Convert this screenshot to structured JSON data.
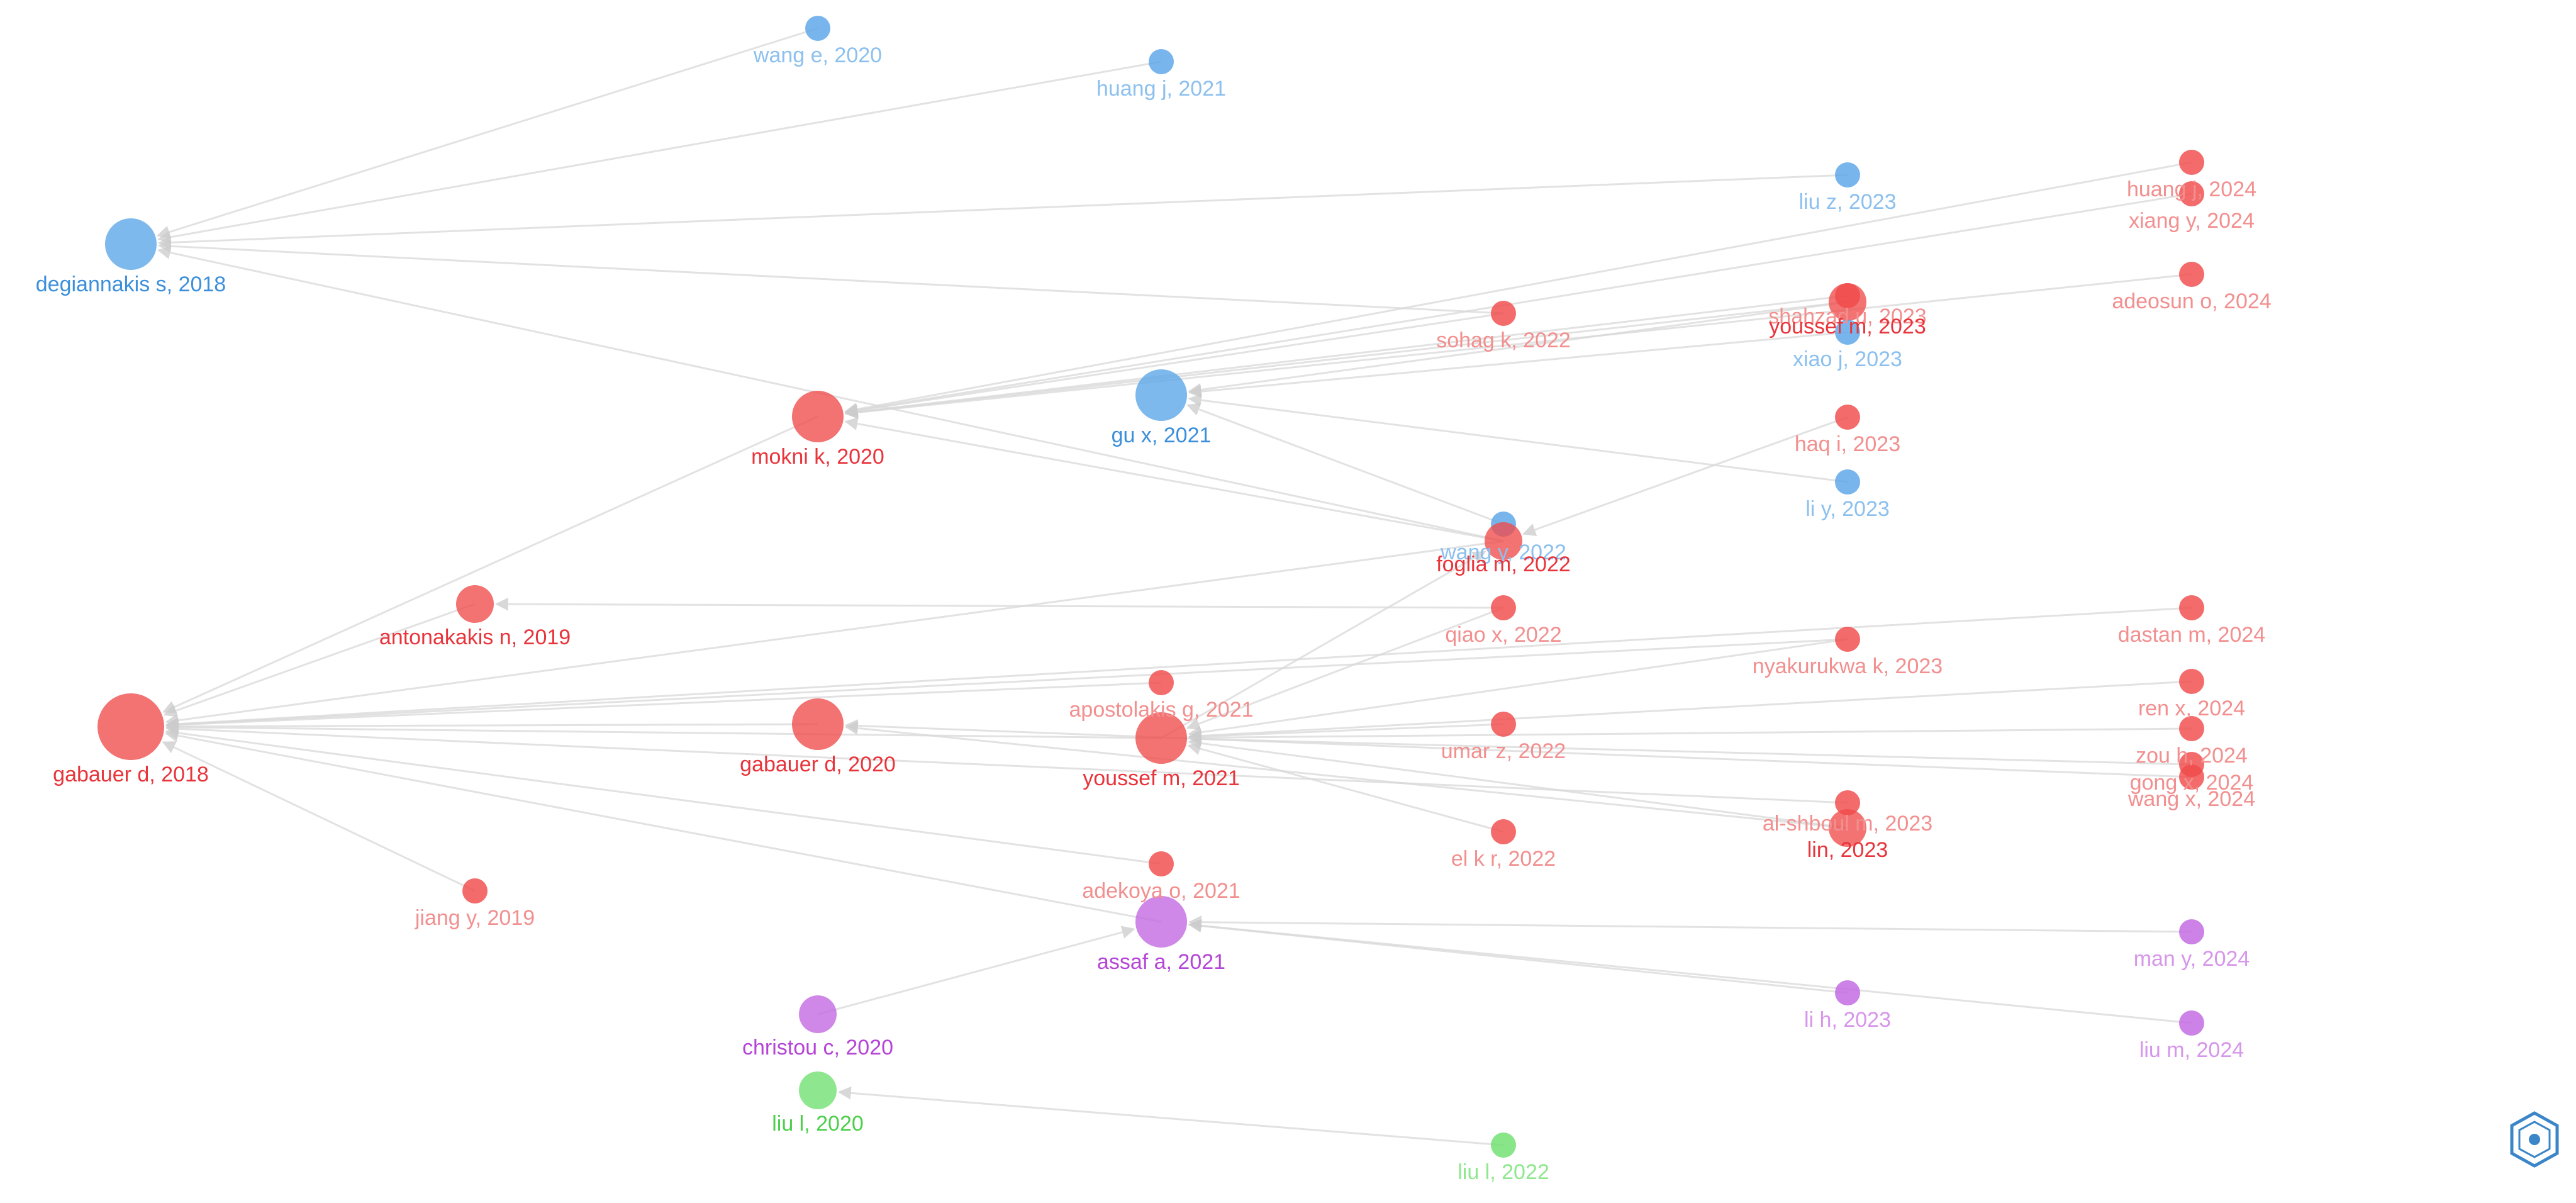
{
  "colors": {
    "red": "#f04a4a",
    "blue": "#5aa5e8",
    "purple": "#c167e0",
    "green": "#6ee06e",
    "edge": "#d9d9d9"
  },
  "nodes": [
    {
      "id": "wange2020",
      "label": "wang e, 2020",
      "cluster": "blue",
      "size": "small"
    },
    {
      "id": "huangj2021",
      "label": "huang j, 2021",
      "cluster": "blue",
      "size": "small"
    },
    {
      "id": "degiannakis2018",
      "label": "degiannakis s, 2018",
      "cluster": "blue",
      "size": "large"
    },
    {
      "id": "liuz2023",
      "label": "liu z, 2023",
      "cluster": "blue",
      "size": "small"
    },
    {
      "id": "huang2024",
      "label": "huang j, 2024",
      "cluster": "red",
      "size": "small"
    },
    {
      "id": "xiangy2024",
      "label": "xiang y, 2024",
      "cluster": "red",
      "size": "small"
    },
    {
      "id": "adeosun2024",
      "label": "adeosun o, 2024",
      "cluster": "red",
      "size": "small"
    },
    {
      "id": "sohagk2022",
      "label": "sohag k, 2022",
      "cluster": "red",
      "size": "small"
    },
    {
      "id": "shahzad2023",
      "label": "shahzad u, 2023",
      "cluster": "red",
      "size": "small"
    },
    {
      "id": "youssef2023",
      "label": "youssef m, 2023",
      "cluster": "red",
      "size": "medium"
    },
    {
      "id": "xiaoj2023",
      "label": "xiao j, 2023",
      "cluster": "blue",
      "size": "small"
    },
    {
      "id": "mokni2020",
      "label": "mokni k, 2020",
      "cluster": "red",
      "size": "large"
    },
    {
      "id": "gux2021",
      "label": "gu x, 2021",
      "cluster": "blue",
      "size": "large"
    },
    {
      "id": "haqi2023",
      "label": "haq i, 2023",
      "cluster": "red",
      "size": "small"
    },
    {
      "id": "liy2023",
      "label": "li y, 2023",
      "cluster": "blue",
      "size": "small"
    },
    {
      "id": "wangy2022",
      "label": "wang y, 2022",
      "cluster": "blue",
      "size": "small"
    },
    {
      "id": "foglia2022",
      "label": "foglia m, 2022",
      "cluster": "red",
      "size": "medium"
    },
    {
      "id": "antonakakis2019",
      "label": "antonakakis n, 2019",
      "cluster": "red",
      "size": "medium"
    },
    {
      "id": "qiaox2022",
      "label": "qiao x, 2022",
      "cluster": "red",
      "size": "small"
    },
    {
      "id": "dastan2024",
      "label": "dastan m, 2024",
      "cluster": "red",
      "size": "small"
    },
    {
      "id": "nyakurukwa2023",
      "label": "nyakurukwa k, 2023",
      "cluster": "red",
      "size": "small"
    },
    {
      "id": "gabauer2018",
      "label": "gabauer d, 2018",
      "cluster": "red",
      "size": "xlarge"
    },
    {
      "id": "apostolakis2021",
      "label": "apostolakis g, 2021",
      "cluster": "red",
      "size": "small"
    },
    {
      "id": "renx2024",
      "label": "ren x, 2024",
      "cluster": "red",
      "size": "small"
    },
    {
      "id": "gabauer2020",
      "label": "gabauer d, 2020",
      "cluster": "red",
      "size": "large"
    },
    {
      "id": "youssef2021",
      "label": "youssef m, 2021",
      "cluster": "red",
      "size": "large"
    },
    {
      "id": "umarz2022",
      "label": "umar z, 2022",
      "cluster": "red",
      "size": "small"
    },
    {
      "id": "zouh2024",
      "label": "zou h, 2024",
      "cluster": "red",
      "size": "small"
    },
    {
      "id": "gong2024",
      "label": "gong x, 2024",
      "cluster": "red",
      "size": "small"
    },
    {
      "id": "wangx2024",
      "label": "wang x, 2024",
      "cluster": "red",
      "size": "small"
    },
    {
      "id": "alshboul2023",
      "label": "al-shboul m, 2023",
      "cluster": "red",
      "size": "small"
    },
    {
      "id": "lin2023",
      "label": "lin, 2023",
      "cluster": "red",
      "size": "medium"
    },
    {
      "id": "elkr2022",
      "label": "el k r, 2022",
      "cluster": "red",
      "size": "small"
    },
    {
      "id": "jiangy2019",
      "label": "jiang y, 2019",
      "cluster": "red",
      "size": "small"
    },
    {
      "id": "adekoya2021",
      "label": "adekoya o, 2021",
      "cluster": "red",
      "size": "small"
    },
    {
      "id": "assaf2021",
      "label": "assaf a, 2021",
      "cluster": "purple",
      "size": "large"
    },
    {
      "id": "many2024",
      "label": "man y, 2024",
      "cluster": "purple",
      "size": "small"
    },
    {
      "id": "lih2023",
      "label": "li h, 2023",
      "cluster": "purple",
      "size": "small"
    },
    {
      "id": "christou2020",
      "label": "christou c, 2020",
      "cluster": "purple",
      "size": "medium"
    },
    {
      "id": "lium2024",
      "label": "liu m, 2024",
      "cluster": "purple",
      "size": "small"
    },
    {
      "id": "liul2020",
      "label": "liu l, 2020",
      "cluster": "green",
      "size": "medium"
    },
    {
      "id": "liul2022",
      "label": "liu l, 2022",
      "cluster": "green",
      "size": "small"
    }
  ],
  "edges": [
    [
      "wange2020",
      "degiannakis2018"
    ],
    [
      "huangj2021",
      "degiannakis2018"
    ],
    [
      "liuz2023",
      "degiannakis2018"
    ],
    [
      "sohagk2022",
      "degiannakis2018"
    ],
    [
      "foglia2022",
      "degiannakis2018"
    ],
    [
      "huang2024",
      "mokni2020"
    ],
    [
      "xiangy2024",
      "mokni2020"
    ],
    [
      "adeosun2024",
      "mokni2020"
    ],
    [
      "sohagk2022",
      "mokni2020"
    ],
    [
      "shahzad2023",
      "mokni2020"
    ],
    [
      "youssef2023",
      "mokni2020"
    ],
    [
      "xiaoj2023",
      "gux2021"
    ],
    [
      "youssef2023",
      "gux2021"
    ],
    [
      "liy2023",
      "gux2021"
    ],
    [
      "wangy2022",
      "gux2021"
    ],
    [
      "foglia2022",
      "mokni2020"
    ],
    [
      "haqi2023",
      "foglia2022"
    ],
    [
      "mokni2020",
      "gabauer2018"
    ],
    [
      "antonakakis2019",
      "gabauer2018"
    ],
    [
      "jiangy2019",
      "gabauer2018"
    ],
    [
      "gabauer2020",
      "gabauer2018"
    ],
    [
      "youssef2021",
      "gabauer2018"
    ],
    [
      "apostolakis2021",
      "gabauer2018"
    ],
    [
      "adekoya2021",
      "gabauer2018"
    ],
    [
      "assaf2021",
      "gabauer2018"
    ],
    [
      "foglia2022",
      "gabauer2018"
    ],
    [
      "qiaox2022",
      "antonakakis2019"
    ],
    [
      "nyakurukwa2023",
      "gabauer2018"
    ],
    [
      "dastan2024",
      "gabauer2018"
    ],
    [
      "renx2024",
      "youssef2021"
    ],
    [
      "zouh2024",
      "youssef2021"
    ],
    [
      "gong2024",
      "youssef2021"
    ],
    [
      "wangx2024",
      "gabauer2020"
    ],
    [
      "umarz2022",
      "youssef2021"
    ],
    [
      "alshboul2023",
      "gabauer2018"
    ],
    [
      "lin2023",
      "youssef2021"
    ],
    [
      "elkr2022",
      "youssef2021"
    ],
    [
      "nyakurukwa2023",
      "youssef2021"
    ],
    [
      "lin2023",
      "gabauer2020"
    ],
    [
      "many2024",
      "assaf2021"
    ],
    [
      "lih2023",
      "assaf2021"
    ],
    [
      "lium2024",
      "assaf2021"
    ],
    [
      "christou2020",
      "assaf2021"
    ],
    [
      "liul2022",
      "liul2020"
    ],
    [
      "youssef2021",
      "foglia2022"
    ],
    [
      "qiaox2022",
      "youssef2021"
    ]
  ]
}
